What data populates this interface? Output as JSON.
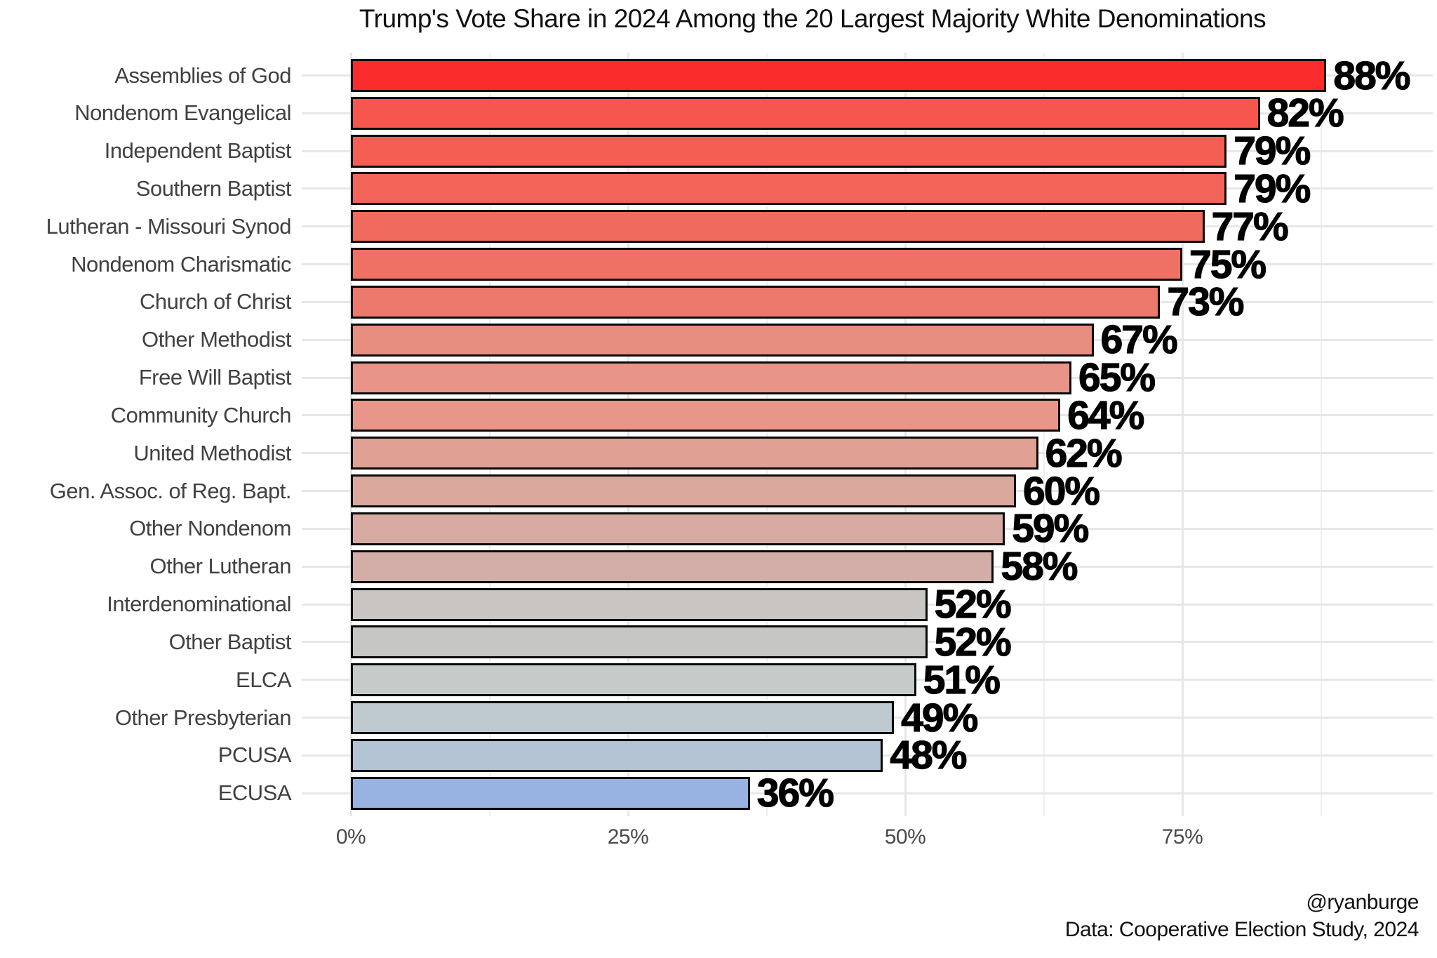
{
  "title": "Trump's Vote Share in 2024 Among the 20 Largest Majority White Denominations",
  "footer": {
    "line1": "@ryanburge",
    "line2": "Data: Cooperative Election Study, 2024"
  },
  "chart_data": {
    "type": "bar",
    "orientation": "horizontal",
    "title": "Trump's Vote Share in 2024 Among the 20 Largest Majority White Denominations",
    "xlabel": "",
    "ylabel": "",
    "xlim": [
      0,
      97.5
    ],
    "grid": true,
    "legend": "none",
    "categories": [
      "Assemblies of God",
      "Nondenom Evangelical",
      "Independent Baptist",
      "Southern Baptist",
      "Lutheran - Missouri Synod",
      "Nondenom Charismatic",
      "Church of Christ",
      "Other Methodist",
      "Free Will Baptist",
      "Community Church",
      "United Methodist",
      "Gen. Assoc. of Reg. Bapt.",
      "Other Nondenom",
      "Other Lutheran",
      "Interdenominational",
      "Other Baptist",
      "ELCA",
      "Other Presbyterian",
      "PCUSA",
      "ECUSA"
    ],
    "values": [
      88,
      82,
      79,
      79,
      77,
      75,
      73,
      67,
      65,
      64,
      62,
      60,
      59,
      58,
      52,
      52,
      51,
      49,
      48,
      36
    ],
    "value_labels": [
      "88%",
      "82%",
      "79%",
      "79%",
      "77%",
      "75%",
      "73%",
      "67%",
      "65%",
      "64%",
      "62%",
      "60%",
      "59%",
      "58%",
      "52%",
      "52%",
      "51%",
      "49%",
      "48%",
      "36%"
    ],
    "bar_colors": [
      "#fa2b2b",
      "#f7564e",
      "#f55e52",
      "#f36458",
      "#f16a5e",
      "#ee7164",
      "#eb796c",
      "#e78e80",
      "#e99489",
      "#e8968a",
      "#e0a093",
      "#dba89e",
      "#d8aba2",
      "#d3aea8",
      "#c8c5c3",
      "#c6c6c4",
      "#c4cbc8",
      "#becad0",
      "#b5c4d4",
      "#98b3e1"
    ],
    "bar_border_color": "#0a0a0a",
    "x_ticks": [
      {
        "value": 0,
        "label": "0%"
      },
      {
        "value": 25,
        "label": "25%"
      },
      {
        "value": 50,
        "label": "50%"
      },
      {
        "value": 75,
        "label": "75%"
      }
    ],
    "x_minor_ticks": [
      12.5,
      37.5,
      62.5,
      87.5
    ],
    "colors": {
      "background": "#ffffff",
      "grid_major": "#e7e7e7",
      "grid_minor": "#efefef",
      "category_label": "#414141",
      "tick_label": "#4a4a4a",
      "value_label": "#000000",
      "title": "#111111"
    }
  }
}
